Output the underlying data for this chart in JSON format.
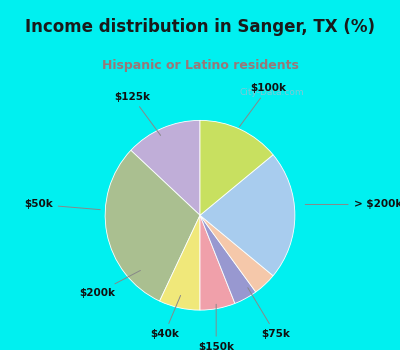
{
  "title": "Income distribution in Sanger, TX (%)",
  "subtitle": "Hispanic or Latino residents",
  "title_color": "#1a1a1a",
  "subtitle_color": "#997777",
  "bg_cyan": "#00f0f0",
  "bg_chart": "#e0f0e8",
  "labels": [
    "$100k",
    "> $200k",
    "$75k",
    "$150k",
    "$40k",
    "$200k",
    "$50k",
    "$125k"
  ],
  "sizes": [
    13.0,
    30.0,
    7.0,
    6.0,
    4.0,
    4.0,
    22.0,
    14.0
  ],
  "colors": [
    "#c0aed8",
    "#aabf90",
    "#f0e87a",
    "#f0a0aa",
    "#9898d0",
    "#f5c8aa",
    "#a8ccee",
    "#c8e060"
  ],
  "startangle": 90
}
